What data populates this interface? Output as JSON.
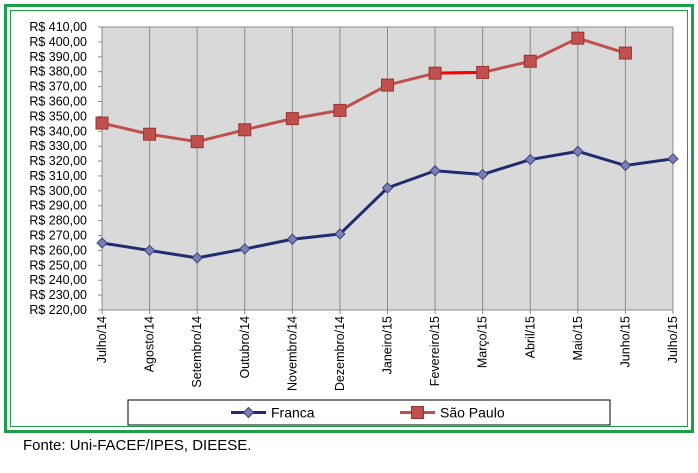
{
  "chart_data": {
    "type": "line",
    "categories": [
      "Julho/14",
      "Agosto/14",
      "Setembro/14",
      "Outubro/14",
      "Novembro/14",
      "Dezembro/14",
      "Janeiro/15",
      "Fevereiro/15",
      "Março/15",
      "Abril/15",
      "Maio/15",
      "Junho/15",
      "Julho/15"
    ],
    "yticks": [
      "R$ 220,00",
      "R$ 230,00",
      "R$ 240,00",
      "R$ 250,00",
      "R$ 260,00",
      "R$ 270,00",
      "R$ 280,00",
      "R$ 290,00",
      "R$ 300,00",
      "R$ 310,00",
      "R$ 320,00",
      "R$ 330,00",
      "R$ 340,00",
      "R$ 350,00",
      "R$ 360,00",
      "R$ 370,00",
      "R$ 380,00",
      "R$ 390,00",
      "R$ 400,00",
      "R$ 410,00"
    ],
    "ylim": [
      220,
      410
    ],
    "grid": "vertical",
    "legend_position": "bottom",
    "series": [
      {
        "name": "Franca",
        "color": "#1f2d6e",
        "marker": "diamond",
        "values": [
          265,
          260,
          255,
          261,
          267.5,
          271,
          302,
          313.5,
          311,
          321,
          326.5,
          317,
          321.5
        ]
      },
      {
        "name": "São Paulo",
        "color": "#c0504d",
        "marker": "square",
        "values": [
          345.5,
          338,
          333,
          341,
          348.5,
          354,
          371,
          379,
          379.5,
          387,
          402.5,
          392.5,
          null
        ]
      }
    ],
    "highlight_segment_color": "#ff0000"
  },
  "caption": "Fonte: Uni-FACEF/IPES, DIEESE."
}
